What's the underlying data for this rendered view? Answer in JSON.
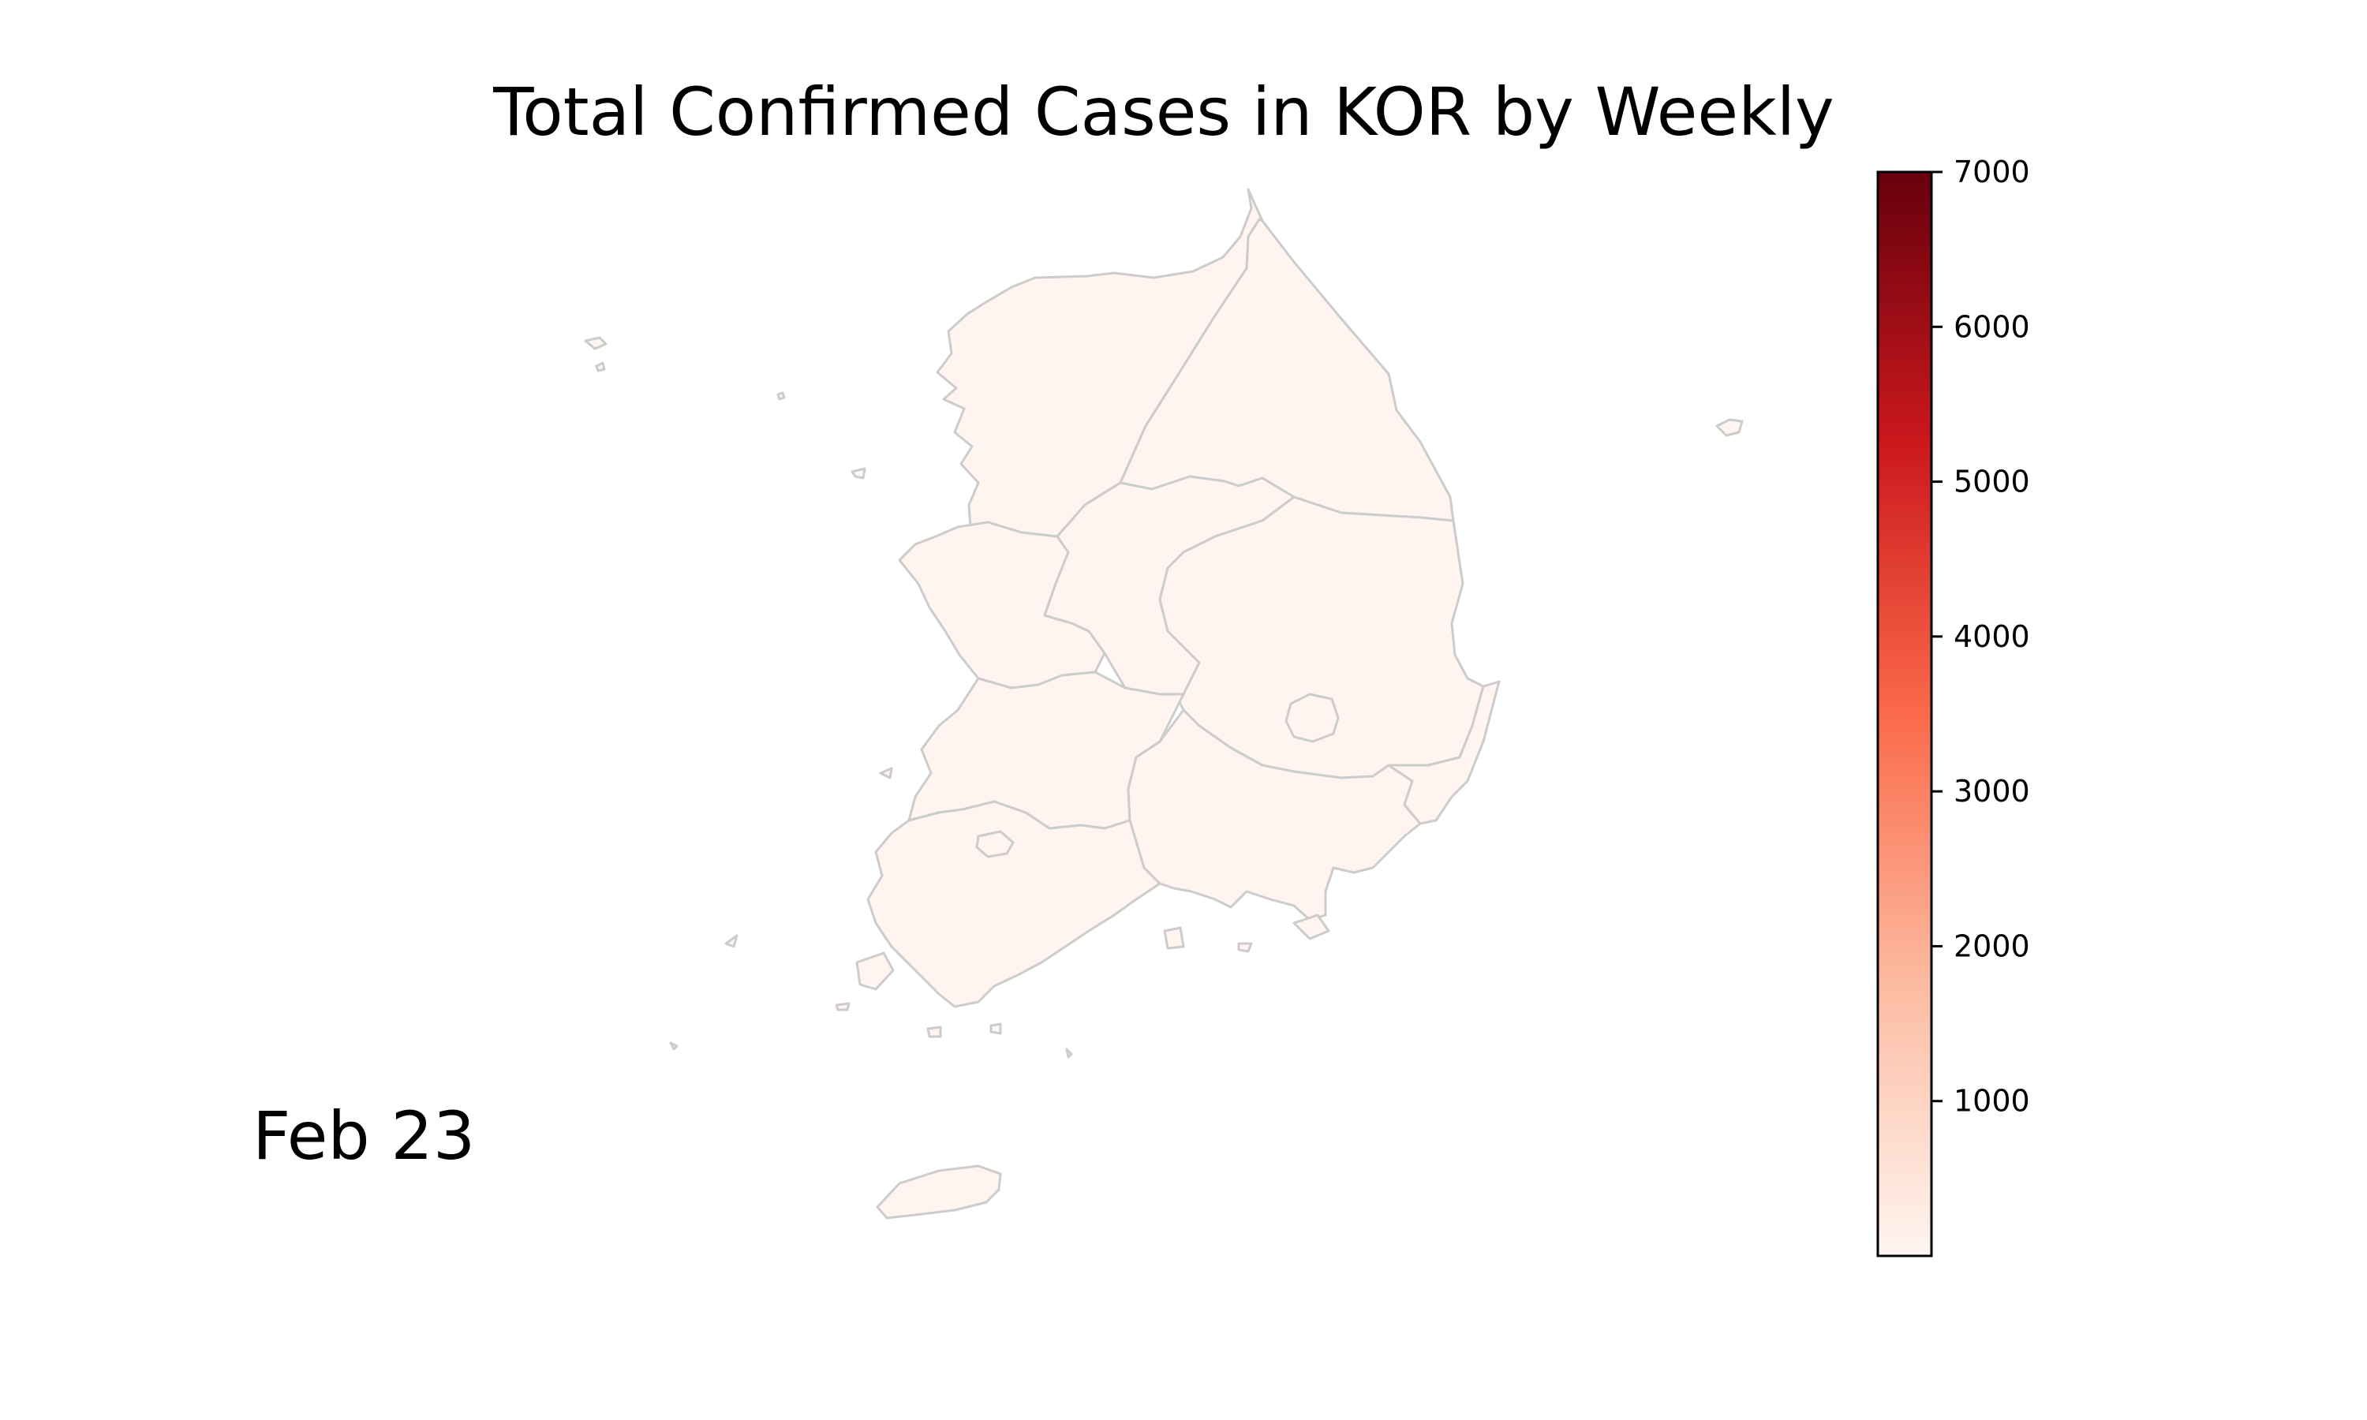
{
  "title": "Total Confirmed Cases in KOR by Weekly",
  "date_label": "Feb 23",
  "colors": {
    "region_fill": "#fff4ef",
    "border": "#cccccc",
    "colormap": [
      "#fff5f0",
      "#fcbba1",
      "#fb6a4a",
      "#cb181d",
      "#67000d"
    ]
  },
  "colorbar": {
    "min": 0,
    "max": 7000,
    "ticks": [
      "1000",
      "2000",
      "3000",
      "4000",
      "5000",
      "6000",
      "7000"
    ]
  }
}
